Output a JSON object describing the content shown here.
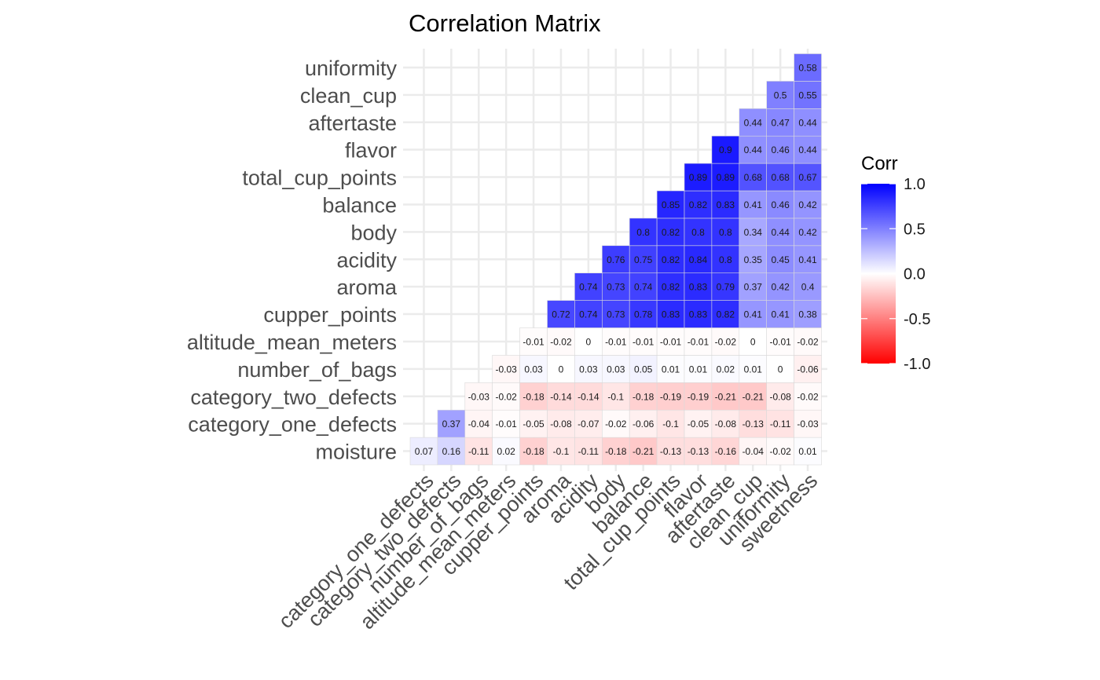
{
  "chart_data": {
    "type": "heatmap",
    "title": "Correlation Matrix",
    "xlabel": "",
    "ylabel": "",
    "x_categories": [
      "category_one_defects",
      "category_two_defects",
      "number_of_bags",
      "altitude_mean_meters",
      "cupper_points",
      "aroma",
      "acidity",
      "body",
      "balance",
      "total_cup_points",
      "flavor",
      "aftertaste",
      "clean_cup",
      "uniformity",
      "sweetness"
    ],
    "y_categories": [
      "moisture",
      "category_one_defects",
      "category_two_defects",
      "number_of_bags",
      "altitude_mean_meters",
      "cupper_points",
      "aroma",
      "acidity",
      "body",
      "balance",
      "total_cup_points",
      "flavor",
      "aftertaste",
      "clean_cup",
      "uniformity"
    ],
    "values": [
      [
        0.07,
        0.16,
        -0.11,
        0.02,
        -0.18,
        -0.1,
        -0.11,
        -0.18,
        -0.21,
        -0.13,
        -0.13,
        -0.16,
        -0.04,
        -0.02,
        0.01
      ],
      [
        null,
        0.37,
        -0.04,
        -0.01,
        -0.05,
        -0.08,
        -0.07,
        -0.02,
        -0.06,
        -0.1,
        -0.05,
        -0.08,
        -0.13,
        -0.11,
        -0.03
      ],
      [
        null,
        null,
        -0.03,
        -0.02,
        -0.18,
        -0.14,
        -0.14,
        -0.1,
        -0.18,
        -0.19,
        -0.19,
        -0.21,
        -0.21,
        -0.08,
        -0.02
      ],
      [
        null,
        null,
        null,
        -0.03,
        0.03,
        0,
        0.03,
        0.03,
        0.05,
        0.01,
        0.01,
        0.02,
        0.01,
        0,
        -0.06
      ],
      [
        null,
        null,
        null,
        null,
        -0.01,
        -0.02,
        0,
        -0.01,
        -0.01,
        -0.01,
        -0.01,
        -0.02,
        0,
        -0.01,
        -0.02
      ],
      [
        null,
        null,
        null,
        null,
        null,
        0.72,
        0.74,
        0.73,
        0.78,
        0.83,
        0.83,
        0.82,
        0.41,
        0.41,
        0.38
      ],
      [
        null,
        null,
        null,
        null,
        null,
        null,
        0.74,
        0.73,
        0.74,
        0.82,
        0.83,
        0.79,
        0.37,
        0.42,
        0.4
      ],
      [
        null,
        null,
        null,
        null,
        null,
        null,
        null,
        0.76,
        0.75,
        0.82,
        0.84,
        0.8,
        0.35,
        0.45,
        0.41
      ],
      [
        null,
        null,
        null,
        null,
        null,
        null,
        null,
        null,
        0.8,
        0.82,
        0.8,
        0.8,
        0.34,
        0.44,
        0.42
      ],
      [
        null,
        null,
        null,
        null,
        null,
        null,
        null,
        null,
        null,
        0.85,
        0.82,
        0.83,
        0.41,
        0.46,
        0.42
      ],
      [
        null,
        null,
        null,
        null,
        null,
        null,
        null,
        null,
        null,
        null,
        0.89,
        0.89,
        0.68,
        0.68,
        0.67
      ],
      [
        null,
        null,
        null,
        null,
        null,
        null,
        null,
        null,
        null,
        null,
        null,
        0.9,
        0.44,
        0.46,
        0.44
      ],
      [
        null,
        null,
        null,
        null,
        null,
        null,
        null,
        null,
        null,
        null,
        null,
        null,
        0.44,
        0.47,
        0.44
      ],
      [
        null,
        null,
        null,
        null,
        null,
        null,
        null,
        null,
        null,
        null,
        null,
        null,
        null,
        0.5,
        0.55
      ],
      [
        null,
        null,
        null,
        null,
        null,
        null,
        null,
        null,
        null,
        null,
        null,
        null,
        null,
        null,
        0.58
      ]
    ],
    "legend": {
      "title": "Corr",
      "ticks": [
        1.0,
        0.5,
        0.0,
        -0.5,
        -1.0
      ],
      "tick_labels": [
        "1.0",
        "0.5",
        "0.0",
        "-0.5",
        "-1.0"
      ],
      "range": [
        -1,
        1
      ],
      "placement": "right"
    },
    "colors": {
      "low": "#ff0000",
      "mid": "#ffffff",
      "high": "#0000ff",
      "grid": "#ebebeb",
      "cell_border": "#d9d9d9"
    },
    "grid": true
  }
}
